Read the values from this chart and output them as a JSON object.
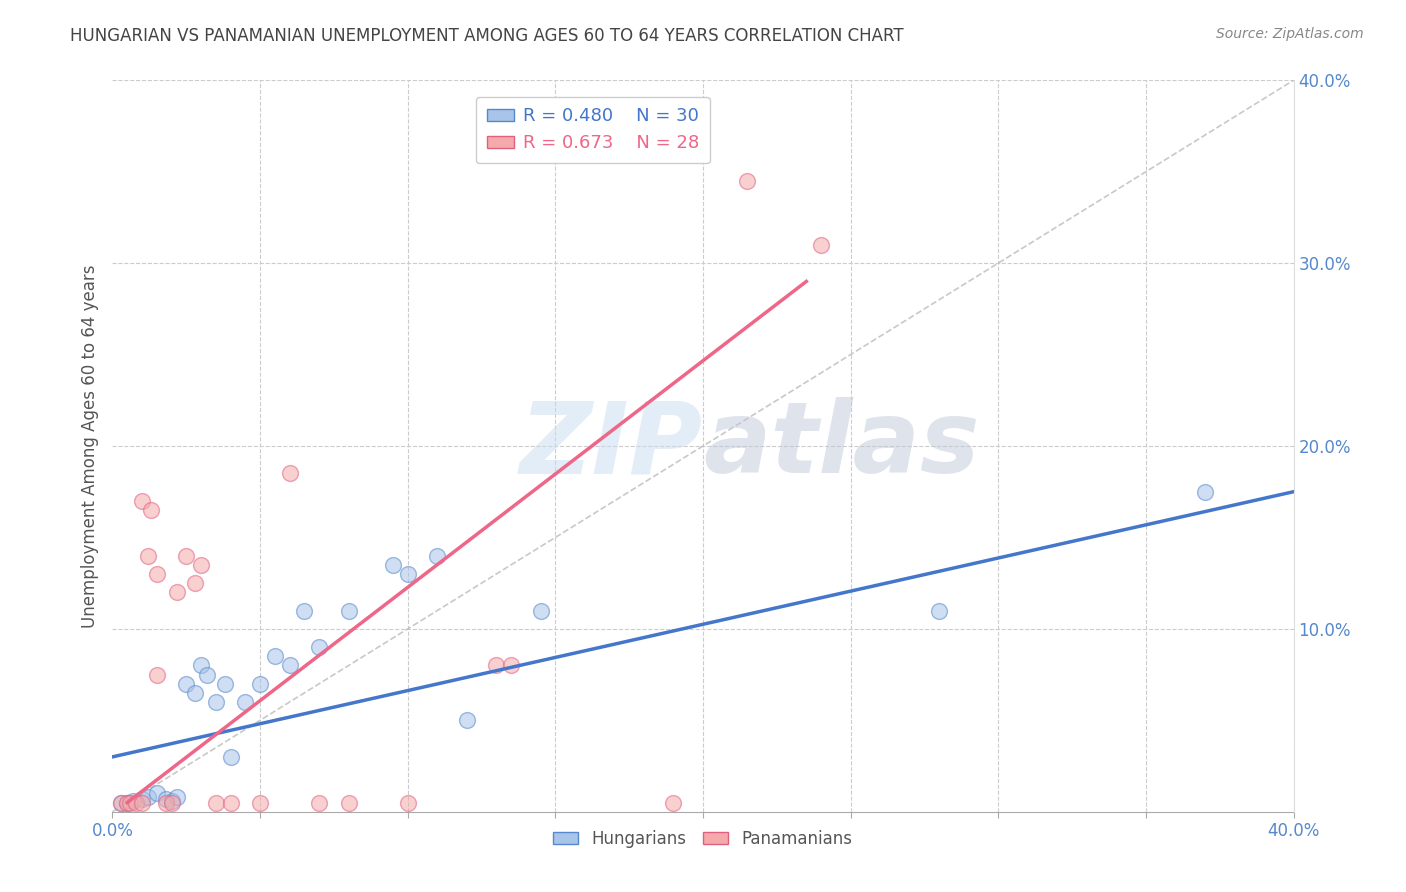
{
  "title": "HUNGARIAN VS PANAMANIAN UNEMPLOYMENT AMONG AGES 60 TO 64 YEARS CORRELATION CHART",
  "source": "Source: ZipAtlas.com",
  "ylabel": "Unemployment Among Ages 60 to 64 years",
  "xlim": [
    0.0,
    0.4
  ],
  "ylim": [
    0.0,
    0.4
  ],
  "xtick_vals": [
    0.0,
    0.05,
    0.1,
    0.15,
    0.2,
    0.25,
    0.3,
    0.35,
    0.4
  ],
  "xtick_edge_labels": {
    "0": "0.0%",
    "0.4": "40.0%"
  },
  "right_ytick_vals": [
    0.1,
    0.2,
    0.3,
    0.4
  ],
  "right_ytick_labels": [
    "10.0%",
    "20.0%",
    "30.0%",
    "40.0%"
  ],
  "legend_blue_r": "R = 0.480",
  "legend_blue_n": "N = 30",
  "legend_pink_r": "R = 0.673",
  "legend_pink_n": "N = 28",
  "blue_fill": "#A8C4E8",
  "blue_edge": "#5588CC",
  "pink_fill": "#F4AAAA",
  "pink_edge": "#E06080",
  "blue_line": "#4477CC",
  "pink_line": "#EE6688",
  "diag_color": "#BBBBBB",
  "grid_color": "#CCCCCC",
  "title_color": "#444444",
  "source_color": "#888888",
  "ylabel_color": "#555555",
  "tick_color": "#5588CC",
  "blue_scatter": [
    [
      0.003,
      0.005
    ],
    [
      0.005,
      0.005
    ],
    [
      0.007,
      0.006
    ],
    [
      0.01,
      0.007
    ],
    [
      0.012,
      0.008
    ],
    [
      0.015,
      0.01
    ],
    [
      0.018,
      0.007
    ],
    [
      0.02,
      0.006
    ],
    [
      0.022,
      0.008
    ],
    [
      0.025,
      0.07
    ],
    [
      0.028,
      0.065
    ],
    [
      0.03,
      0.08
    ],
    [
      0.032,
      0.075
    ],
    [
      0.035,
      0.06
    ],
    [
      0.038,
      0.07
    ],
    [
      0.04,
      0.03
    ],
    [
      0.045,
      0.06
    ],
    [
      0.05,
      0.07
    ],
    [
      0.055,
      0.085
    ],
    [
      0.06,
      0.08
    ],
    [
      0.065,
      0.11
    ],
    [
      0.07,
      0.09
    ],
    [
      0.08,
      0.11
    ],
    [
      0.095,
      0.135
    ],
    [
      0.1,
      0.13
    ],
    [
      0.11,
      0.14
    ],
    [
      0.12,
      0.05
    ],
    [
      0.145,
      0.11
    ],
    [
      0.28,
      0.11
    ],
    [
      0.37,
      0.175
    ]
  ],
  "pink_scatter": [
    [
      0.003,
      0.005
    ],
    [
      0.005,
      0.005
    ],
    [
      0.006,
      0.005
    ],
    [
      0.008,
      0.005
    ],
    [
      0.01,
      0.005
    ],
    [
      0.01,
      0.17
    ],
    [
      0.012,
      0.14
    ],
    [
      0.013,
      0.165
    ],
    [
      0.015,
      0.075
    ],
    [
      0.015,
      0.13
    ],
    [
      0.018,
      0.005
    ],
    [
      0.02,
      0.005
    ],
    [
      0.022,
      0.12
    ],
    [
      0.025,
      0.14
    ],
    [
      0.028,
      0.125
    ],
    [
      0.03,
      0.135
    ],
    [
      0.035,
      0.005
    ],
    [
      0.04,
      0.005
    ],
    [
      0.05,
      0.005
    ],
    [
      0.06,
      0.185
    ],
    [
      0.07,
      0.005
    ],
    [
      0.08,
      0.005
    ],
    [
      0.1,
      0.005
    ],
    [
      0.13,
      0.08
    ],
    [
      0.135,
      0.08
    ],
    [
      0.19,
      0.005
    ],
    [
      0.215,
      0.345
    ],
    [
      0.24,
      0.31
    ]
  ],
  "blue_trend_x": [
    0.0,
    0.4
  ],
  "blue_trend_y": [
    0.03,
    0.175
  ],
  "pink_trend_x": [
    0.005,
    0.235
  ],
  "pink_trend_y": [
    0.005,
    0.29
  ],
  "watermark_zip": "ZIP",
  "watermark_atlas": "atlas",
  "marker_size": 130,
  "alpha_scatter": 0.55,
  "legend_bottom": [
    "Hungarians",
    "Panamanians"
  ]
}
